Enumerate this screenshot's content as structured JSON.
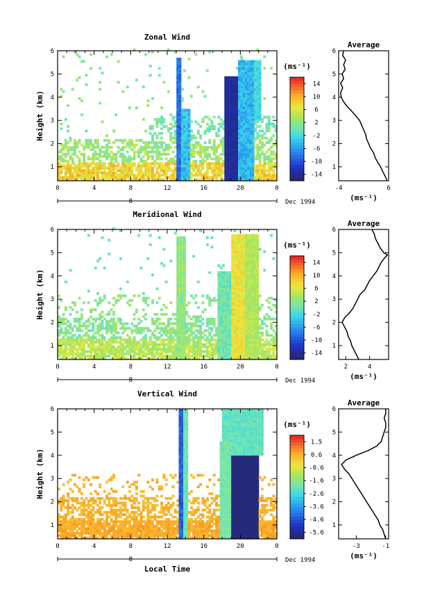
{
  "chart_data": [
    {
      "type": "heatmap",
      "title": "Zonal Wind",
      "ylabel": "Height (km)",
      "xlabel": "",
      "x_ticks": [
        "0",
        "4",
        "8",
        "12",
        "16",
        "20",
        "0"
      ],
      "y_ticks": [
        "1",
        "2",
        "3",
        "4",
        "5",
        "6"
      ],
      "xlim": [
        0,
        24
      ],
      "ylim": [
        0.4,
        6
      ],
      "date_marker": "8",
      "date_label": "Dec 1994",
      "colorbar": {
        "unit": "(ms⁻¹)",
        "ticks": [
          "14",
          "10",
          "6",
          "2",
          "-2",
          "-6",
          "-10",
          "-14"
        ],
        "range": [
          -16,
          16
        ]
      },
      "average": {
        "title": "Average",
        "xlabel": "(ms⁻¹)",
        "x_ticks": [
          "-4",
          "6"
        ],
        "y_ticks": [
          "1",
          "2",
          "3",
          "4",
          "5",
          "6"
        ],
        "xlim": [
          -4,
          6
        ],
        "ylim": [
          0.4,
          6
        ],
        "points": [
          [
            5.7,
            0.4
          ],
          [
            5.3,
            0.6
          ],
          [
            4.8,
            0.8
          ],
          [
            4.4,
            1.0
          ],
          [
            3.8,
            1.2
          ],
          [
            3.3,
            1.4
          ],
          [
            3.0,
            1.6
          ],
          [
            2.4,
            1.8
          ],
          [
            2.0,
            2.0
          ],
          [
            1.6,
            2.2
          ],
          [
            1.4,
            2.4
          ],
          [
            1.0,
            2.6
          ],
          [
            0.6,
            2.8
          ],
          [
            0.2,
            3.0
          ],
          [
            -0.6,
            3.2
          ],
          [
            -1.4,
            3.4
          ],
          [
            -2.3,
            3.6
          ],
          [
            -3.0,
            3.8
          ],
          [
            -3.5,
            4.0
          ],
          [
            -3.6,
            4.2
          ],
          [
            -3.2,
            4.4
          ],
          [
            -3.6,
            4.6
          ],
          [
            -3.0,
            4.8
          ],
          [
            -3.3,
            5.0
          ],
          [
            -2.7,
            5.2
          ],
          [
            -3.0,
            5.4
          ],
          [
            -2.6,
            5.6
          ],
          [
            -3.2,
            5.8
          ],
          [
            -3.0,
            6.0
          ]
        ]
      }
    },
    {
      "type": "heatmap",
      "title": "Meridional Wind",
      "ylabel": "Height (km)",
      "xlabel": "",
      "x_ticks": [
        "0",
        "4",
        "8",
        "12",
        "16",
        "20",
        "0"
      ],
      "y_ticks": [
        "1",
        "2",
        "3",
        "4",
        "5",
        "6"
      ],
      "xlim": [
        0,
        24
      ],
      "ylim": [
        0.4,
        6
      ],
      "date_marker": "8",
      "date_label": "Dec 1994",
      "colorbar": {
        "unit": "(ms⁻¹)",
        "ticks": [
          "14",
          "10",
          "6",
          "2",
          "-2",
          "-6",
          "-10",
          "-14"
        ],
        "range": [
          -16,
          16
        ]
      },
      "average": {
        "title": "Average",
        "xlabel": "(ms⁻¹)",
        "x_ticks": [
          "2",
          "4"
        ],
        "y_ticks": [
          "1",
          "2",
          "3",
          "4",
          "5",
          "6"
        ],
        "xlim": [
          1.4,
          5.6
        ],
        "ylim": [
          0.4,
          6
        ],
        "points": [
          [
            3.1,
            0.4
          ],
          [
            2.9,
            0.6
          ],
          [
            2.7,
            0.8
          ],
          [
            2.5,
            1.0
          ],
          [
            2.4,
            1.2
          ],
          [
            2.2,
            1.4
          ],
          [
            2.1,
            1.6
          ],
          [
            1.9,
            1.8
          ],
          [
            1.7,
            2.0
          ],
          [
            1.9,
            2.2
          ],
          [
            2.3,
            2.4
          ],
          [
            2.6,
            2.6
          ],
          [
            2.8,
            2.8
          ],
          [
            3.0,
            3.0
          ],
          [
            3.2,
            3.2
          ],
          [
            3.6,
            3.4
          ],
          [
            3.8,
            3.6
          ],
          [
            4.0,
            3.8
          ],
          [
            4.3,
            4.0
          ],
          [
            4.6,
            4.2
          ],
          [
            4.8,
            4.4
          ],
          [
            5.0,
            4.6
          ],
          [
            5.3,
            4.8
          ],
          [
            5.5,
            4.9
          ],
          [
            5.2,
            5.0
          ],
          [
            4.9,
            5.2
          ],
          [
            4.7,
            5.4
          ],
          [
            4.5,
            5.6
          ],
          [
            4.4,
            5.8
          ],
          [
            4.2,
            6.0
          ]
        ]
      }
    },
    {
      "type": "heatmap",
      "title": "Vertical Wind",
      "ylabel": "Height (km)",
      "xlabel": "Local Time",
      "x_ticks": [
        "0",
        "4",
        "8",
        "12",
        "16",
        "20",
        "0"
      ],
      "y_ticks": [
        "1",
        "2",
        "3",
        "4",
        "5",
        "6"
      ],
      "xlim": [
        0,
        24
      ],
      "ylim": [
        0.4,
        6
      ],
      "date_marker": "8",
      "date_label": "Dec 1994",
      "colorbar": {
        "unit": "(ms⁻¹)",
        "ticks": [
          "1.5",
          "0.6",
          "-0.6",
          "-1.6",
          "-2.6",
          "-3.6",
          "-4.6",
          "-5.6"
        ],
        "range": [
          -6,
          2
        ]
      },
      "average": {
        "title": "Average",
        "xlabel": "(ms⁻¹)",
        "x_ticks": [
          "-3",
          "-1"
        ],
        "y_ticks": [
          "1",
          "2",
          "3",
          "4",
          "5",
          "6"
        ],
        "xlim": [
          -4.2,
          -0.8
        ],
        "ylim": [
          0.4,
          6
        ],
        "points": [
          [
            -1.0,
            0.4
          ],
          [
            -1.1,
            0.6
          ],
          [
            -1.2,
            0.8
          ],
          [
            -1.4,
            1.0
          ],
          [
            -1.5,
            1.2
          ],
          [
            -1.7,
            1.4
          ],
          [
            -1.9,
            1.6
          ],
          [
            -2.1,
            1.8
          ],
          [
            -2.3,
            2.0
          ],
          [
            -2.5,
            2.2
          ],
          [
            -2.7,
            2.4
          ],
          [
            -2.9,
            2.6
          ],
          [
            -3.1,
            2.8
          ],
          [
            -3.3,
            3.0
          ],
          [
            -3.5,
            3.2
          ],
          [
            -3.8,
            3.4
          ],
          [
            -4.0,
            3.6
          ],
          [
            -3.7,
            3.8
          ],
          [
            -3.0,
            4.0
          ],
          [
            -2.2,
            4.2
          ],
          [
            -1.6,
            4.4
          ],
          [
            -1.3,
            4.6
          ],
          [
            -1.2,
            4.8
          ],
          [
            -1.1,
            5.0
          ],
          [
            -1.0,
            5.2
          ],
          [
            -1.0,
            5.4
          ],
          [
            -1.1,
            5.6
          ],
          [
            -1.0,
            5.8
          ],
          [
            -1.0,
            6.0
          ]
        ]
      }
    }
  ]
}
